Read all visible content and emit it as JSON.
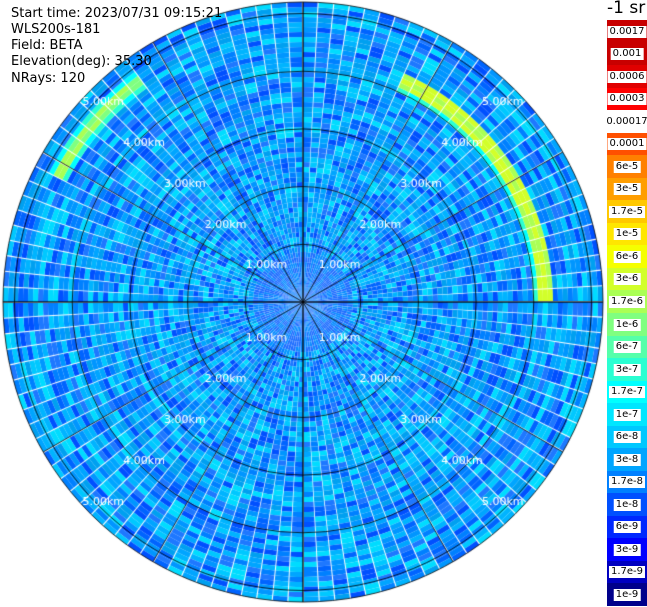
{
  "info": {
    "start_time": "Start time: 2023/07/31 09:15:21",
    "device": "WLS200s-181",
    "field": "Field: BETA",
    "elevation": "Elevation(deg): 35.30",
    "nrays": "NRays: 120"
  },
  "colorbar": {
    "title": "-1 sr",
    "levels": [
      {
        "label": "0.0017",
        "color": "#c80000"
      },
      {
        "label": "0.001",
        "color": "#c80000"
      },
      {
        "label": "0.0006",
        "color": "#e00000"
      },
      {
        "label": "0.0003",
        "color": "#ff0000"
      },
      {
        "label": "0.00017",
        "color": "#ffffff"
      },
      {
        "label": "0.0001",
        "color": "#ff5000"
      },
      {
        "label": "6e-5",
        "color": "#ff8000"
      },
      {
        "label": "3e-5",
        "color": "#ff9e00"
      },
      {
        "label": "1.7e-5",
        "color": "#ffc800"
      },
      {
        "label": "1e-5",
        "color": "#ffe600"
      },
      {
        "label": "6e-6",
        "color": "#f5ff00"
      },
      {
        "label": "3e-6",
        "color": "#d2ff2a"
      },
      {
        "label": "1.7e-6",
        "color": "#aaff55"
      },
      {
        "label": "1e-6",
        "color": "#80ff80"
      },
      {
        "label": "6e-7",
        "color": "#55ffaa"
      },
      {
        "label": "3e-7",
        "color": "#2affd2"
      },
      {
        "label": "1.7e-7",
        "color": "#00ffff"
      },
      {
        "label": "1e-7",
        "color": "#00e6ff"
      },
      {
        "label": "6e-8",
        "color": "#00c8ff"
      },
      {
        "label": "3e-8",
        "color": "#00a5ff"
      },
      {
        "label": "1.7e-8",
        "color": "#0080ff"
      },
      {
        "label": "1e-8",
        "color": "#0050ff"
      },
      {
        "label": "6e-9",
        "color": "#0028ff"
      },
      {
        "label": "3e-9",
        "color": "#0000ff"
      },
      {
        "label": "1.7e-9",
        "color": "#0000c0"
      },
      {
        "label": "1e-9",
        "color": "#00008b"
      }
    ]
  },
  "chart_data": {
    "type": "heatmap",
    "projection": "polar-ppi",
    "field": "BETA",
    "rays": 120,
    "range_max_km": 5.2,
    "range_rings_km": [
      1,
      2,
      3,
      4,
      5
    ],
    "range_ring_labels": [
      "1.00km",
      "2.00km",
      "3.00km",
      "4.00km",
      "5.00km"
    ],
    "spokes_deg": [
      0,
      30,
      60,
      90,
      120,
      150,
      180,
      210,
      240,
      270,
      300,
      330
    ],
    "background_value": "3e-8",
    "aerosol_arcs": [
      {
        "range_km": 4.2,
        "azimuth_from_deg": 25,
        "azimuth_to_deg": 90,
        "value": "6e-6"
      },
      {
        "range_km": 4.8,
        "azimuth_from_deg": 298,
        "azimuth_to_deg": 325,
        "value": "1.7e-6"
      }
    ]
  }
}
